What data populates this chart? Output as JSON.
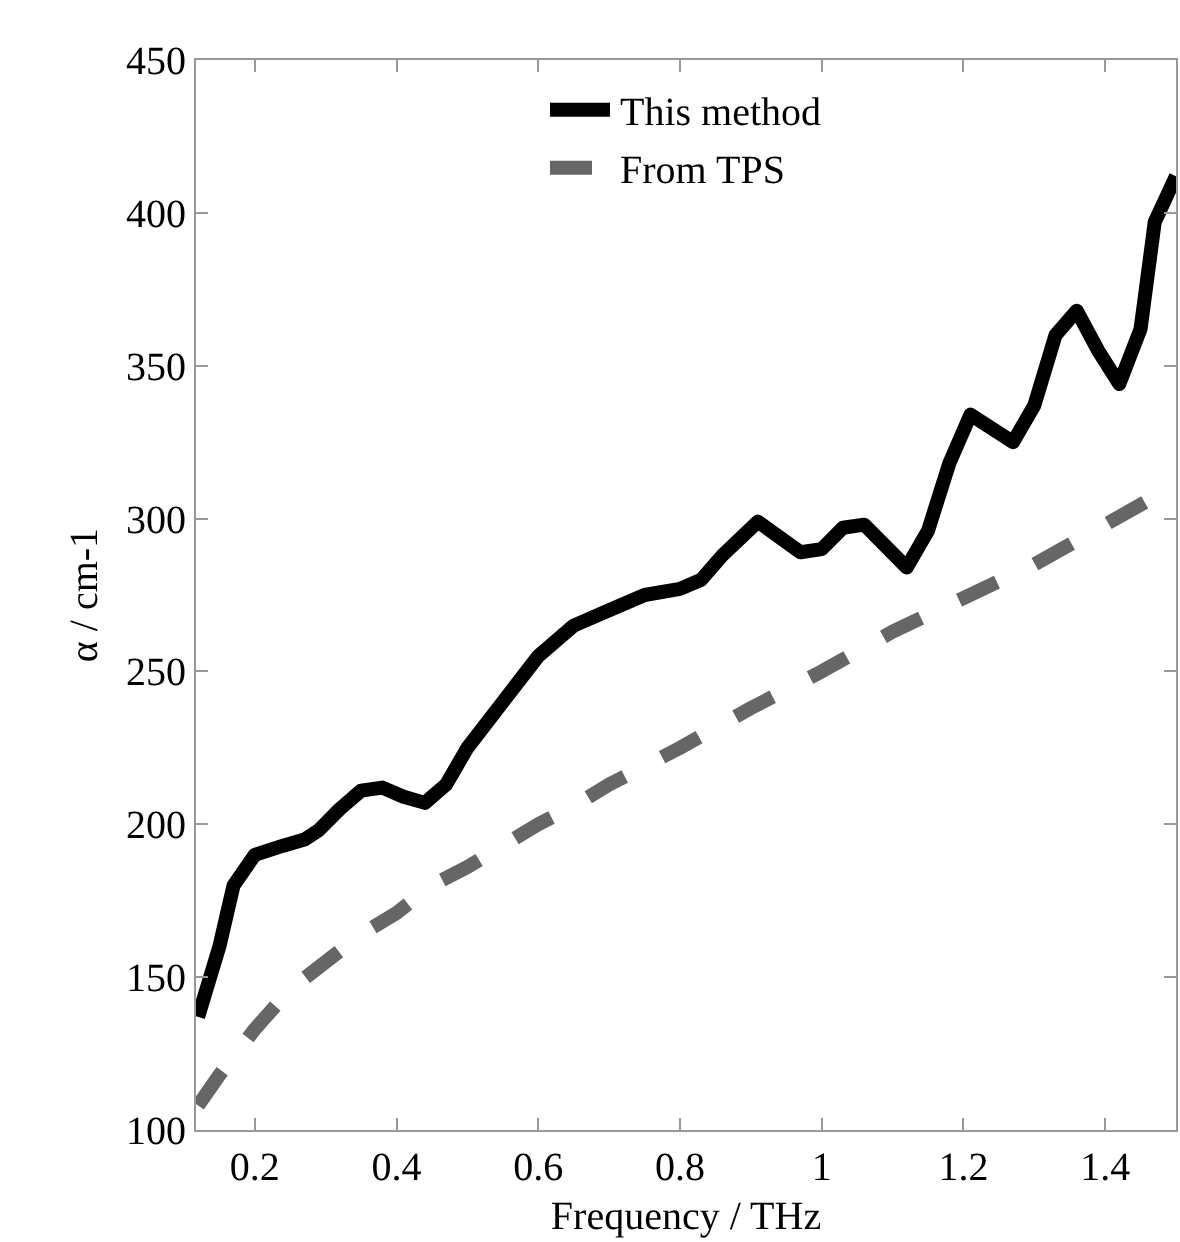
{
  "chart_data": {
    "type": "line",
    "xlabel": "Frequency / THz",
    "ylabel": "α / cm-1",
    "xlim": [
      0.117,
      1.5
    ],
    "xticks": [
      0.2,
      0.4,
      0.6,
      0.8,
      1,
      1.2,
      1.4
    ],
    "ylim": [
      100,
      450
    ],
    "yticks": [
      100,
      150,
      200,
      250,
      300,
      350,
      400,
      450
    ],
    "grid": false,
    "legend": "top",
    "marker": "none",
    "series": [
      {
        "name": "This method",
        "color": "#000000",
        "line_style": "solid",
        "x": [
          0.12,
          0.15,
          0.17,
          0.2,
          0.24,
          0.27,
          0.29,
          0.32,
          0.35,
          0.38,
          0.41,
          0.44,
          0.47,
          0.5,
          0.55,
          0.6,
          0.65,
          0.7,
          0.75,
          0.8,
          0.83,
          0.86,
          0.91,
          0.97,
          1.0,
          1.03,
          1.06,
          1.12,
          1.15,
          1.18,
          1.21,
          1.27,
          1.3,
          1.33,
          1.36,
          1.39,
          1.42,
          1.45,
          1.47,
          1.5
        ],
        "values": [
          137,
          160,
          180,
          190,
          193,
          195,
          198,
          205,
          211,
          212,
          209,
          207,
          213,
          225,
          240,
          255,
          265,
          270,
          275,
          277,
          280,
          288,
          299,
          289,
          290,
          297,
          298,
          284,
          296,
          318,
          334,
          325,
          337,
          360,
          368,
          355,
          344,
          362,
          397,
          412
        ]
      },
      {
        "name": "From TPS",
        "color": "#666666",
        "line_style": "dashed",
        "x": [
          0.12,
          0.15,
          0.2,
          0.25,
          0.3,
          0.35,
          0.4,
          0.45,
          0.5,
          0.55,
          0.6,
          0.65,
          0.7,
          0.8,
          0.9,
          1.0,
          1.1,
          1.2,
          1.3,
          1.4,
          1.5
        ],
        "values": [
          108,
          118,
          133,
          146,
          155,
          164,
          171,
          180,
          186,
          193,
          200,
          206,
          213,
          225,
          238,
          250,
          263,
          274,
          285,
          298,
          311
        ]
      }
    ]
  }
}
